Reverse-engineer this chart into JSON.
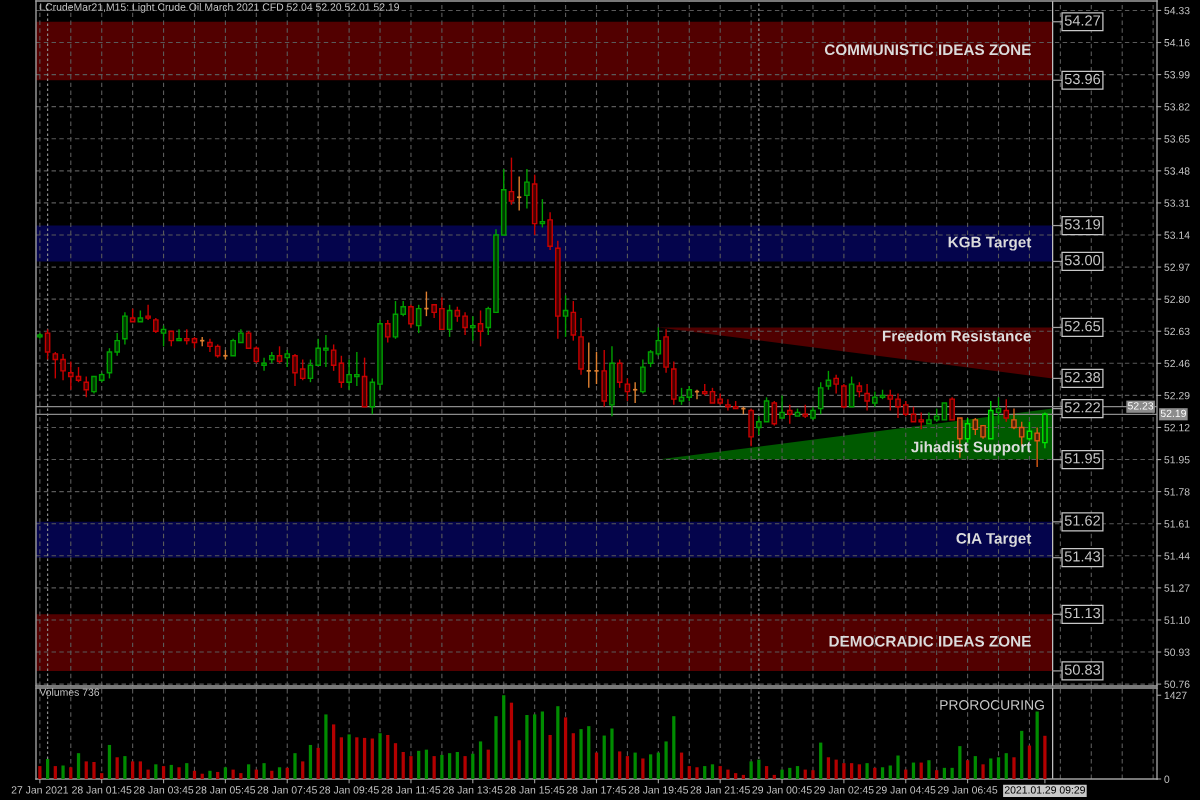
{
  "chart_data": [
    {
      "type": "candlestick",
      "title": "LCrudeMar21,M15: Light Crude Oil March 2021 CFD 52.04 52.20 52.01 52.19",
      "categories": [
        null,
        null,
        null,
        null,
        null,
        null,
        null,
        null,
        null,
        null,
        null,
        null,
        null,
        null,
        null,
        null,
        null,
        null,
        null,
        null,
        null,
        null,
        null,
        null,
        null,
        null,
        null,
        null,
        null,
        null,
        null,
        null,
        null,
        null,
        null,
        null,
        null,
        null,
        null,
        null,
        null,
        null,
        null,
        null,
        null,
        null,
        null,
        null,
        null,
        null,
        null,
        null,
        null,
        null,
        null,
        null,
        null,
        null,
        null,
        null,
        null,
        null,
        null,
        null,
        null,
        null,
        null,
        null,
        null,
        null,
        null,
        null,
        null,
        null,
        null,
        null,
        null,
        null,
        null,
        null,
        null,
        null,
        null,
        null,
        null,
        null,
        null,
        null,
        null,
        null,
        null,
        null,
        null,
        null,
        null,
        null,
        null,
        null,
        null,
        null,
        null,
        null,
        null,
        null,
        null,
        null,
        null,
        null,
        null,
        null,
        null,
        null,
        null,
        null,
        null,
        null,
        null,
        null,
        null,
        null,
        null,
        null,
        null,
        null,
        null,
        null,
        null,
        null,
        null,
        null,
        null,
        null,
        null,
        null,
        null,
        null,
        null,
        null,
        null,
        null,
        null,
        null,
        null,
        null,
        null
      ],
      "ohlc": [
        [
          52.6,
          52.62,
          52.59,
          52.61
        ],
        [
          52.62,
          52.64,
          52.48,
          52.52
        ],
        [
          52.51,
          52.52,
          52.38,
          52.48
        ],
        [
          52.48,
          52.51,
          52.37,
          52.42
        ],
        [
          52.41,
          52.47,
          52.32,
          52.39
        ],
        [
          52.39,
          52.44,
          52.36,
          52.37
        ],
        [
          52.36,
          52.39,
          52.28,
          52.32
        ],
        [
          52.31,
          52.39,
          52.3,
          52.39
        ],
        [
          52.37,
          52.41,
          52.36,
          52.4
        ],
        [
          52.41,
          52.54,
          52.38,
          52.52
        ],
        [
          52.52,
          52.62,
          52.5,
          52.58
        ],
        [
          52.59,
          52.73,
          52.56,
          52.71
        ],
        [
          52.7,
          52.75,
          52.68,
          52.68
        ],
        [
          52.68,
          52.74,
          52.68,
          52.7
        ],
        [
          52.71,
          52.77,
          52.69,
          52.7
        ],
        [
          52.69,
          52.7,
          52.62,
          52.63
        ],
        [
          52.62,
          52.66,
          52.55,
          52.64
        ],
        [
          52.63,
          52.63,
          52.55,
          52.58
        ],
        [
          52.58,
          52.64,
          52.58,
          52.59
        ],
        [
          52.59,
          52.64,
          52.56,
          52.58
        ],
        [
          52.59,
          52.6,
          52.54,
          52.57
        ],
        [
          52.58,
          52.6,
          52.55,
          52.58
        ],
        [
          52.57,
          52.59,
          52.52,
          52.55
        ],
        [
          52.55,
          52.56,
          52.49,
          52.5
        ],
        [
          52.5,
          52.53,
          52.48,
          52.5
        ],
        [
          52.5,
          52.59,
          52.5,
          52.58
        ],
        [
          52.57,
          52.64,
          52.57,
          52.62
        ],
        [
          52.62,
          52.63,
          52.54,
          52.54
        ],
        [
          52.54,
          52.55,
          52.46,
          52.47
        ],
        [
          52.45,
          52.49,
          52.42,
          52.46
        ],
        [
          52.48,
          52.52,
          52.46,
          52.5
        ],
        [
          52.5,
          52.55,
          52.46,
          52.47
        ],
        [
          52.49,
          52.53,
          52.44,
          52.51
        ],
        [
          52.5,
          52.51,
          52.34,
          52.41
        ],
        [
          52.43,
          52.48,
          52.37,
          52.38
        ],
        [
          52.38,
          52.48,
          52.36,
          52.45
        ],
        [
          52.45,
          52.59,
          52.45,
          52.54
        ],
        [
          52.53,
          52.61,
          52.44,
          52.54
        ],
        [
          52.53,
          52.56,
          52.42,
          52.45
        ],
        [
          52.46,
          52.5,
          52.33,
          52.36
        ],
        [
          52.36,
          52.48,
          52.32,
          52.4
        ],
        [
          52.39,
          52.52,
          52.34,
          52.4
        ],
        [
          52.39,
          52.49,
          52.23,
          52.23
        ],
        [
          52.23,
          52.38,
          52.19,
          52.36
        ],
        [
          52.35,
          52.69,
          52.32,
          52.67
        ],
        [
          52.67,
          52.69,
          52.57,
          52.6
        ],
        [
          52.6,
          52.79,
          52.59,
          52.72
        ],
        [
          52.72,
          52.79,
          52.71,
          52.76
        ],
        [
          52.76,
          52.77,
          52.65,
          52.67
        ],
        [
          52.66,
          52.77,
          52.62,
          52.75
        ],
        [
          52.75,
          52.84,
          52.71,
          52.75
        ],
        [
          52.77,
          52.77,
          52.7,
          52.73
        ],
        [
          52.75,
          52.81,
          52.64,
          52.64
        ],
        [
          52.64,
          52.77,
          52.6,
          52.74
        ],
        [
          52.74,
          52.76,
          52.68,
          52.71
        ],
        [
          52.71,
          52.73,
          52.61,
          52.65
        ],
        [
          52.65,
          52.71,
          52.58,
          52.66
        ],
        [
          52.67,
          52.74,
          52.55,
          52.63
        ],
        [
          52.65,
          52.76,
          52.61,
          52.75
        ],
        [
          52.73,
          53.17,
          52.73,
          53.14
        ],
        [
          53.14,
          53.49,
          53.14,
          53.38
        ],
        [
          53.37,
          53.55,
          53.3,
          53.32
        ],
        [
          53.34,
          53.45,
          53.27,
          53.34
        ],
        [
          53.35,
          53.49,
          53.28,
          53.42
        ],
        [
          53.41,
          53.46,
          53.14,
          53.2
        ],
        [
          53.2,
          53.33,
          53.18,
          53.21
        ],
        [
          53.22,
          53.26,
          53.06,
          53.08
        ],
        [
          53.07,
          53.11,
          52.59,
          52.71
        ],
        [
          52.71,
          52.82,
          52.6,
          52.74
        ],
        [
          52.73,
          52.79,
          52.58,
          52.61
        ],
        [
          52.6,
          52.7,
          52.4,
          52.43
        ],
        [
          52.42,
          52.57,
          52.33,
          52.42
        ],
        [
          52.42,
          52.52,
          52.35,
          52.42
        ],
        [
          52.42,
          52.53,
          52.23,
          52.26
        ],
        [
          52.24,
          52.55,
          52.18,
          52.46
        ],
        [
          52.46,
          52.48,
          52.33,
          52.36
        ],
        [
          52.35,
          52.38,
          52.26,
          52.31
        ],
        [
          52.32,
          52.36,
          52.25,
          52.32
        ],
        [
          52.31,
          52.48,
          52.3,
          52.44
        ],
        [
          52.46,
          52.53,
          52.44,
          52.52
        ],
        [
          52.51,
          52.65,
          52.5,
          52.58
        ],
        [
          52.6,
          52.64,
          52.41,
          52.44
        ],
        [
          52.43,
          52.47,
          52.24,
          52.27
        ],
        [
          52.26,
          52.33,
          52.24,
          52.28
        ],
        [
          52.28,
          52.34,
          52.26,
          52.32
        ],
        [
          52.31,
          52.32,
          52.27,
          52.31
        ],
        [
          52.31,
          52.35,
          52.29,
          52.3
        ],
        [
          52.31,
          52.33,
          52.25,
          52.25
        ],
        [
          52.27,
          52.3,
          52.24,
          52.25
        ],
        [
          52.24,
          52.27,
          52.21,
          52.23
        ],
        [
          52.23,
          52.26,
          52.22,
          52.22
        ],
        [
          52.22,
          52.23,
          52.19,
          52.22
        ],
        [
          52.21,
          52.22,
          52.02,
          52.07
        ],
        [
          52.12,
          52.18,
          52.08,
          52.15
        ],
        [
          52.15,
          52.28,
          52.15,
          52.26
        ],
        [
          52.25,
          52.26,
          52.13,
          52.14
        ],
        [
          52.17,
          52.29,
          52.17,
          52.2
        ],
        [
          52.21,
          52.24,
          52.14,
          52.19
        ],
        [
          52.18,
          52.22,
          52.18,
          52.2
        ],
        [
          52.19,
          52.24,
          52.17,
          52.18
        ],
        [
          52.17,
          52.23,
          52.16,
          52.21
        ],
        [
          52.22,
          52.36,
          52.19,
          52.33
        ],
        [
          52.34,
          52.42,
          52.32,
          52.37
        ],
        [
          52.38,
          52.4,
          52.3,
          52.35
        ],
        [
          52.34,
          52.35,
          52.22,
          52.23
        ],
        [
          52.23,
          52.39,
          52.23,
          52.35
        ],
        [
          52.34,
          52.36,
          52.28,
          52.31
        ],
        [
          52.3,
          52.35,
          52.21,
          52.26
        ],
        [
          52.25,
          52.31,
          52.23,
          52.28
        ],
        [
          52.28,
          52.32,
          52.27,
          52.29
        ],
        [
          52.29,
          52.32,
          52.21,
          52.27
        ],
        [
          52.27,
          52.3,
          52.17,
          52.23
        ],
        [
          52.24,
          52.26,
          52.18,
          52.19
        ],
        [
          52.19,
          52.23,
          52.15,
          52.15
        ],
        [
          52.16,
          52.2,
          52.11,
          52.15
        ],
        [
          52.14,
          52.2,
          52.14,
          52.16
        ],
        [
          52.16,
          52.22,
          52.15,
          52.18
        ],
        [
          52.16,
          52.25,
          52.16,
          52.25
        ],
        [
          52.27,
          52.28,
          52.16,
          52.16
        ],
        [
          52.17,
          52.17,
          51.96,
          52.06
        ],
        [
          52.06,
          52.17,
          52.04,
          52.14
        ],
        [
          52.16,
          52.17,
          52.08,
          52.11
        ],
        [
          52.13,
          52.13,
          52.06,
          52.07
        ],
        [
          52.06,
          52.26,
          52.06,
          52.21
        ],
        [
          52.2,
          52.28,
          52.14,
          52.22
        ],
        [
          52.21,
          52.27,
          52.15,
          52.17
        ],
        [
          52.16,
          52.22,
          52.11,
          52.12
        ],
        [
          52.12,
          52.15,
          52.02,
          52.07
        ],
        [
          52.06,
          52.15,
          52.05,
          52.1
        ],
        [
          52.09,
          52.12,
          51.91,
          52.05
        ],
        [
          52.04,
          52.2,
          52.01,
          52.19
        ],
        null,
        null,
        null,
        null,
        null,
        null,
        null,
        null,
        null,
        null,
        null,
        null,
        null,
        null
      ],
      "colors": [
        "#00a000",
        "#c80000",
        "#c80000",
        "#c80000",
        "#c80000",
        "#c80000",
        "#c80000",
        "#00a000",
        "#00a000",
        "#00a000",
        "#00a000",
        "#00a000",
        "#c80000",
        "#00a000",
        "#c80000",
        "#c80000",
        "#00a000",
        "#c80000",
        "#00a000",
        "#c80000",
        "#c80000",
        "#e08030",
        "#c80000",
        "#c80000",
        "#e08030",
        "#00a000",
        "#00a000",
        "#c80000",
        "#c80000",
        "#00a000",
        "#00a000",
        "#c80000",
        "#00a000",
        "#c80000",
        "#c80000",
        "#00a000",
        "#00a000",
        "#00a000",
        "#c80000",
        "#c80000",
        "#00a000",
        "#00a000",
        "#c80000",
        "#00a000",
        "#00a000",
        "#c80000",
        "#00a000",
        "#00a000",
        "#c80000",
        "#00a000",
        "#e08030",
        "#c80000",
        "#c80000",
        "#00a000",
        "#c80000",
        "#c80000",
        "#00a000",
        "#c80000",
        "#00a000",
        "#00a000",
        "#00a000",
        "#c80000",
        "#e08030",
        "#00a000",
        "#c80000",
        "#00a000",
        "#c80000",
        "#c80000",
        "#00a000",
        "#c80000",
        "#c80000",
        "#e08030",
        "#e08030",
        "#c80000",
        "#00a000",
        "#c80000",
        "#c80000",
        "#e08030",
        "#00a000",
        "#00a000",
        "#00a000",
        "#c80000",
        "#c80000",
        "#00a000",
        "#00a000",
        "#e08030",
        "#c80000",
        "#c80000",
        "#c80000",
        "#c80000",
        "#c80000",
        "#e08030",
        "#c80000",
        "#00a000",
        "#00a000",
        "#c80000",
        "#00a000",
        "#c80000",
        "#00a000",
        "#c80000",
        "#00a000",
        "#00a000",
        "#00a000",
        "#c80000",
        "#c80000",
        "#00a000",
        "#c80000",
        "#c80000",
        "#00a000",
        "#00a000",
        "#c80000",
        "#c80000",
        "#c80000",
        "#c80000",
        "#c80000",
        "#00a000",
        "#00a000",
        "#00a000",
        "#c80000",
        "#dc5a14",
        "#00e600",
        "#dc5a14",
        "#dc5a14",
        "#00e600",
        "#00a000",
        "#c80000",
        "#dc5a14",
        "#dc5a14",
        "#00e600",
        "#dc5a14",
        "#00e600",
        null,
        null,
        null,
        null,
        null,
        null,
        null,
        null,
        null,
        null,
        null,
        null,
        null,
        null
      ],
      "ylim": [
        50.75,
        54.38
      ],
      "yticks": [
        50.76,
        50.93,
        {
          "value": 51.1,
          "label": "51.10"
        },
        51.27,
        51.44,
        51.61,
        51.78,
        51.95,
        52.12,
        52.29,
        52.46,
        52.63,
        {
          "value": 52.8,
          "label": "52.80"
        },
        52.97,
        53.14,
        53.31,
        53.48,
        53.65,
        53.82,
        53.99,
        54.16,
        54.33
      ],
      "tick_labels": "y",
      "grid": true,
      "bands": [
        {
          "axis": "y",
          "from": 53.96,
          "to": 54.27,
          "label": "COMMUNISTIC IDEAS ZONE",
          "color": "#520000"
        },
        {
          "axis": "y",
          "from": 53.0,
          "to": 53.19,
          "label": "KGB Target",
          "color": "#04044c"
        },
        {
          "axis": "y",
          "from": 51.43,
          "to": 51.62,
          "label": "CIA Target",
          "color": "#04044c"
        },
        {
          "axis": "y",
          "from": 50.83,
          "to": 51.13,
          "label": "DEMOCRADIC IDEAS ZONE",
          "color": "#520000"
        }
      ],
      "ref_lines": [
        {
          "axis": "y",
          "value": 52.19,
          "label": "52.19",
          "color": "#8c8c8c",
          "line_style": "solid"
        },
        {
          "axis": "y",
          "value": 52.23,
          "label": "52.23",
          "color": "#8c8c8c",
          "line_style": "solid"
        }
      ],
      "series": [
        {
          "type": "area",
          "name": "Freedom Resistance",
          "color": "#500000",
          "values": [
            null,
            null,
            null,
            null,
            null,
            null,
            null,
            null,
            null,
            null,
            null,
            null,
            null,
            null,
            null,
            null,
            null,
            null,
            null,
            null,
            null,
            null,
            null,
            null,
            null,
            null,
            null,
            null,
            null,
            null,
            null,
            null,
            null,
            null,
            null,
            null,
            null,
            null,
            null,
            null,
            null,
            null,
            null,
            null,
            null,
            null,
            null,
            null,
            null,
            null,
            null,
            null,
            null,
            null,
            null,
            null,
            null,
            null,
            null,
            null,
            null,
            null,
            null,
            null,
            null,
            null,
            null,
            null,
            null,
            null,
            null,
            null,
            null,
            null,
            null,
            null,
            null,
            null,
            null,
            null,
            52.65,
            null,
            null,
            null,
            null,
            null,
            null,
            null,
            null,
            null,
            null,
            null,
            null,
            null,
            null,
            null,
            null,
            null,
            null,
            null,
            null,
            null,
            null,
            null,
            null,
            null,
            null,
            null,
            null,
            null,
            null,
            null,
            null,
            null,
            null,
            null,
            null,
            null,
            null,
            null,
            null,
            null,
            null,
            null,
            null,
            null,
            null,
            null,
            null,
            null,
            null,
            52.38,
            null,
            null,
            null,
            null,
            null,
            null,
            null,
            null,
            null,
            null,
            null,
            null,
            null
          ]
        },
        {
          "type": "area",
          "name": "Jihadist Support",
          "color": "#005a00",
          "values": [
            null,
            null,
            null,
            null,
            null,
            null,
            null,
            null,
            null,
            null,
            null,
            null,
            null,
            null,
            null,
            null,
            null,
            null,
            null,
            null,
            null,
            null,
            null,
            null,
            null,
            null,
            null,
            null,
            null,
            null,
            null,
            null,
            null,
            null,
            null,
            null,
            null,
            null,
            null,
            null,
            null,
            null,
            null,
            null,
            null,
            null,
            null,
            null,
            null,
            null,
            null,
            null,
            null,
            null,
            null,
            null,
            null,
            null,
            null,
            null,
            null,
            null,
            null,
            null,
            null,
            null,
            null,
            null,
            null,
            null,
            null,
            null,
            null,
            null,
            null,
            null,
            null,
            null,
            null,
            null,
            51.95,
            null,
            null,
            null,
            null,
            null,
            null,
            null,
            null,
            null,
            null,
            null,
            null,
            null,
            null,
            null,
            null,
            null,
            null,
            null,
            null,
            null,
            null,
            null,
            null,
            null,
            null,
            null,
            null,
            null,
            null,
            null,
            null,
            null,
            null,
            null,
            null,
            null,
            null,
            null,
            null,
            null,
            null,
            null,
            null,
            null,
            null,
            null,
            null,
            null,
            null,
            52.22,
            null,
            null,
            null,
            null,
            null,
            null,
            null,
            null,
            null,
            null,
            null,
            null,
            null
          ]
        }
      ],
      "annotations": [
        {
          "text": "54.27",
          "y": 54.27
        },
        {
          "text": "53.96",
          "y": 53.96
        },
        {
          "text": "53.19",
          "y": 53.19
        },
        {
          "text": "53.00",
          "y": 53.0
        },
        {
          "text": "52.65",
          "y": 52.65
        },
        {
          "text": "52.38",
          "y": 52.38
        },
        {
          "text": "52.22",
          "y": 52.22
        },
        {
          "text": "51.95",
          "y": 51.95
        },
        {
          "text": "51.62",
          "y": 51.62
        },
        {
          "text": "51.43",
          "y": 51.43
        },
        {
          "text": "51.13",
          "y": 51.13
        },
        {
          "text": "50.83",
          "y": 50.83
        }
      ]
    },
    {
      "type": "bar",
      "title": "Volumes 736",
      "categories": [
        "27 Jan 2021",
        null,
        null,
        null,
        null,
        null,
        null,
        null,
        "28 Jan 01:45",
        null,
        null,
        null,
        null,
        null,
        null,
        null,
        "28 Jan 03:45",
        null,
        null,
        null,
        null,
        null,
        null,
        null,
        "28 Jan 05:45",
        null,
        null,
        null,
        null,
        null,
        null,
        null,
        "28 Jan 07:45",
        null,
        null,
        null,
        null,
        null,
        null,
        null,
        "28 Jan 09:45",
        null,
        null,
        null,
        null,
        null,
        null,
        null,
        "28 Jan 11:45",
        null,
        null,
        null,
        null,
        null,
        null,
        null,
        "28 Jan 13:45",
        null,
        null,
        null,
        null,
        null,
        null,
        null,
        "28 Jan 15:45",
        null,
        null,
        null,
        null,
        null,
        null,
        null,
        "28 Jan 17:45",
        null,
        null,
        null,
        null,
        null,
        null,
        null,
        "28 Jan 19:45",
        null,
        null,
        null,
        null,
        null,
        null,
        null,
        "28 Jan 21:45",
        null,
        null,
        null,
        null,
        null,
        null,
        null,
        "29 Jan 00:45",
        null,
        null,
        null,
        null,
        null,
        null,
        null,
        "29 Jan 02:45",
        null,
        null,
        null,
        null,
        null,
        null,
        null,
        "29 Jan 04:45",
        null,
        null,
        null,
        null,
        null,
        null,
        null,
        "29 Jan 06:45",
        null,
        null,
        null,
        null,
        null,
        null,
        null,
        null,
        null,
        "2021.01.29 09:29",
        null,
        null,
        null,
        null,
        null,
        null,
        null,
        null,
        null,
        null,
        null,
        null,
        null,
        null
      ],
      "values": [
        220,
        340,
        220,
        230,
        200,
        440,
        300,
        290,
        100,
        580,
        370,
        390,
        300,
        300,
        160,
        250,
        220,
        240,
        200,
        270,
        140,
        90,
        140,
        120,
        200,
        160,
        100,
        250,
        160,
        270,
        140,
        200,
        190,
        440,
        300,
        580,
        530,
        1100,
        930,
        710,
        760,
        710,
        700,
        690,
        780,
        750,
        610,
        460,
        390,
        480,
        500,
        390,
        410,
        440,
        460,
        390,
        430,
        640,
        500,
        1070,
        1427,
        1300,
        660,
        1090,
        1100,
        1150,
        750,
        1240,
        1050,
        780,
        850,
        900,
        450,
        740,
        860,
        470,
        390,
        450,
        350,
        420,
        450,
        640,
        1070,
        450,
        220,
        200,
        220,
        250,
        220,
        160,
        100,
        70,
        300,
        330,
        220,
        70,
        160,
        190,
        220,
        160,
        150,
        620,
        370,
        330,
        270,
        270,
        250,
        270,
        190,
        200,
        230,
        400,
        160,
        280,
        280,
        320,
        150,
        190,
        190,
        560,
        320,
        390,
        250,
        350,
        370,
        440,
        370,
        820,
        570,
        1150,
        736,
        null,
        null,
        null,
        null,
        null,
        null,
        null,
        null,
        null,
        null,
        null,
        null,
        null,
        null
      ],
      "colors": [
        "#b40000",
        "#008c00",
        "#b40000",
        "#008c00",
        "#b40000",
        "#008c00",
        "#b40000",
        "#b40000",
        "#b40000",
        "#008c00",
        "#b40000",
        "#008c00",
        "#b40000",
        "#b40000",
        "#b40000",
        "#008c00",
        "#b40000",
        "#008c00",
        "#b40000",
        "#008c00",
        "#b40000",
        "#b40000",
        "#008c00",
        "#b40000",
        "#008c00",
        "#b40000",
        "#b40000",
        "#008c00",
        "#b40000",
        "#008c00",
        "#b40000",
        "#008c00",
        "#b40000",
        "#008c00",
        "#b40000",
        "#008c00",
        "#b40000",
        "#008c00",
        "#b40000",
        "#b40000",
        "#008c00",
        "#b40000",
        "#b40000",
        "#b40000",
        "#008c00",
        "#b40000",
        "#b40000",
        "#b40000",
        "#b40000",
        "#008c00",
        "#008c00",
        "#b40000",
        "#008c00",
        "#008c00",
        "#008c00",
        "#b40000",
        "#008c00",
        "#008c00",
        "#b40000",
        "#008c00",
        "#008c00",
        "#b40000",
        "#b40000",
        "#008c00",
        "#008c00",
        "#008c00",
        "#b40000",
        "#008c00",
        "#b40000",
        "#b40000",
        "#008c00",
        "#008c00",
        "#b40000",
        "#008c00",
        "#008c00",
        "#b40000",
        "#b40000",
        "#008c00",
        "#b40000",
        "#008c00",
        "#008c00",
        "#008c00",
        "#008c00",
        "#b40000",
        "#b40000",
        "#b40000",
        "#008c00",
        "#008c00",
        "#b40000",
        "#b40000",
        "#b40000",
        "#b40000",
        "#008c00",
        "#008c00",
        "#b40000",
        "#b40000",
        "#008c00",
        "#008c00",
        "#008c00",
        "#b40000",
        "#b40000",
        "#008c00",
        "#b40000",
        "#b40000",
        "#b40000",
        "#b40000",
        "#b40000",
        "#008c00",
        "#b40000",
        "#008c00",
        "#008c00",
        "#008c00",
        "#b40000",
        "#008c00",
        "#b40000",
        "#008c00",
        "#b40000",
        "#008c00",
        "#008c00",
        "#008c00",
        "#b40000",
        "#008c00",
        "#b40000",
        "#008c00",
        "#008c00",
        "#008c00",
        "#b40000",
        "#008c00",
        "#b40000",
        "#008c00",
        "#b40000",
        null,
        null,
        null,
        null,
        null,
        null,
        null,
        null,
        null,
        null,
        null,
        null,
        null,
        null
      ],
      "ylim": [
        0,
        1550
      ],
      "yticks": [
        0,
        1427
      ],
      "grid": "x",
      "annotations": [
        "PROROCURING"
      ]
    }
  ]
}
